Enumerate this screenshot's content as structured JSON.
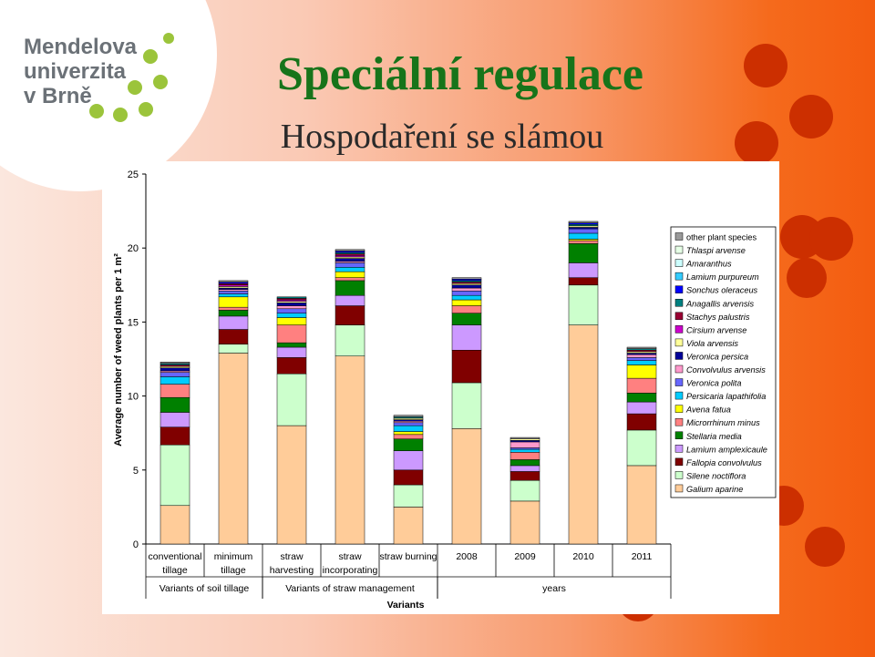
{
  "header": {
    "logo_lines": [
      "Mendelova",
      "univerzita",
      "v Brně"
    ],
    "title": "Speciální regulace",
    "subtitle": "Hospodaření se slámou"
  },
  "colors": {
    "title": "#17741a",
    "chart_background": "#ffffff"
  },
  "chart_data": {
    "type": "bar",
    "stacked": true,
    "ylabel": "Average number of weed plants per 1 m²",
    "xlabel": "Variants",
    "ylim": [
      0,
      25
    ],
    "yticks": [
      0,
      5,
      10,
      15,
      20,
      25
    ],
    "categories": [
      [
        "conventional",
        "tillage"
      ],
      [
        "minimum",
        "tillage"
      ],
      [
        "straw",
        "harvesting"
      ],
      [
        "straw",
        "incorporating"
      ],
      [
        "straw burning"
      ],
      [
        "2008"
      ],
      [
        "2009"
      ],
      [
        "2010"
      ],
      [
        "2011"
      ]
    ],
    "groups": [
      {
        "label": "Variants of soil tillage",
        "from": 0,
        "to": 1
      },
      {
        "label": "Variants of straw management",
        "from": 2,
        "to": 4
      },
      {
        "label": "years",
        "from": 5,
        "to": 8
      }
    ],
    "legend_position": "right",
    "series": [
      {
        "name": "Galium aparine",
        "color": "#ffcc99",
        "values": [
          2.6,
          12.9,
          8.0,
          12.7,
          2.5,
          7.8,
          2.9,
          14.8,
          5.3
        ]
      },
      {
        "name": "Silene noctiflora",
        "color": "#ccffcc",
        "values": [
          4.1,
          0.6,
          3.5,
          2.1,
          1.5,
          3.1,
          1.4,
          2.7,
          2.4
        ]
      },
      {
        "name": "Fallopia convolvulus",
        "color": "#800000",
        "values": [
          1.2,
          1.0,
          1.1,
          1.3,
          1.0,
          2.2,
          0.6,
          0.5,
          1.1
        ]
      },
      {
        "name": "Lamium amplexicaule",
        "color": "#cc99ff",
        "values": [
          1.0,
          0.9,
          0.7,
          0.7,
          1.3,
          1.7,
          0.4,
          1.0,
          0.8
        ]
      },
      {
        "name": "Stellaria media",
        "color": "#008000",
        "values": [
          1.0,
          0.4,
          0.3,
          1.0,
          0.8,
          0.8,
          0.4,
          1.3,
          0.6
        ]
      },
      {
        "name": "Microrrhinum minus",
        "color": "#ff8080",
        "values": [
          0.9,
          0.2,
          1.2,
          0.2,
          0.3,
          0.5,
          0.5,
          0.2,
          1.0
        ]
      },
      {
        "name": "Avena fatua",
        "color": "#ffff00",
        "values": [
          0.0,
          0.7,
          0.5,
          0.4,
          0.2,
          0.4,
          0.0,
          0.1,
          0.9
        ]
      },
      {
        "name": "Persicaria lapathifolia",
        "color": "#00ccff",
        "values": [
          0.5,
          0.2,
          0.3,
          0.3,
          0.4,
          0.3,
          0.2,
          0.4,
          0.3
        ]
      },
      {
        "name": "Veronica polita",
        "color": "#6666ff",
        "values": [
          0.3,
          0.2,
          0.3,
          0.3,
          0.2,
          0.3,
          0.1,
          0.3,
          0.2
        ]
      },
      {
        "name": "Convolvulus arvensis",
        "color": "#ff99cc",
        "values": [
          0.1,
          0.1,
          0.2,
          0.1,
          0.1,
          0.2,
          0.4,
          0.0,
          0.2
        ]
      },
      {
        "name": "Veronica persica",
        "color": "#000099",
        "values": [
          0.2,
          0.1,
          0.2,
          0.2,
          0.1,
          0.2,
          0.1,
          0.1,
          0.1
        ]
      },
      {
        "name": "Viola arvensis",
        "color": "#ffff99",
        "values": [
          0.1,
          0.1,
          0.1,
          0.1,
          0.1,
          0.1,
          0.1,
          0.1,
          0.1
        ]
      },
      {
        "name": "Cirsium arvense",
        "color": "#cc00cc",
        "values": [
          0.0,
          0.1,
          0.1,
          0.1,
          0.0,
          0.0,
          0.0,
          0.0,
          0.0
        ]
      },
      {
        "name": "Stachys palustris",
        "color": "#990033",
        "values": [
          0.1,
          0.1,
          0.1,
          0.1,
          0.0,
          0.1,
          0.0,
          0.0,
          0.1
        ]
      },
      {
        "name": "Anagallis arvensis",
        "color": "#008080",
        "values": [
          0.1,
          0.0,
          0.1,
          0.1,
          0.1,
          0.1,
          0.0,
          0.1,
          0.1
        ]
      },
      {
        "name": "Sonchus oleraceus",
        "color": "#0000ff",
        "values": [
          0.0,
          0.1,
          0.0,
          0.1,
          0.0,
          0.1,
          0.0,
          0.1,
          0.0
        ]
      },
      {
        "name": "Lamium purpureum",
        "color": "#33ccff",
        "values": [
          0.0,
          0.0,
          0.0,
          0.0,
          0.0,
          0.0,
          0.0,
          0.0,
          0.0
        ]
      },
      {
        "name": "Amaranthus",
        "color": "#ccffff",
        "values": [
          0.0,
          0.0,
          0.0,
          0.0,
          0.0,
          0.0,
          0.0,
          0.0,
          0.0
        ]
      },
      {
        "name": "Thlaspi arvense",
        "color": "#e6ffe6",
        "values": [
          0.0,
          0.0,
          0.0,
          0.0,
          0.0,
          0.0,
          0.0,
          0.0,
          0.0
        ]
      },
      {
        "name": "other plant species",
        "color": "#999999",
        "values": [
          0.1,
          0.1,
          0.0,
          0.1,
          0.1,
          0.1,
          0.1,
          0.1,
          0.1
        ]
      }
    ]
  }
}
